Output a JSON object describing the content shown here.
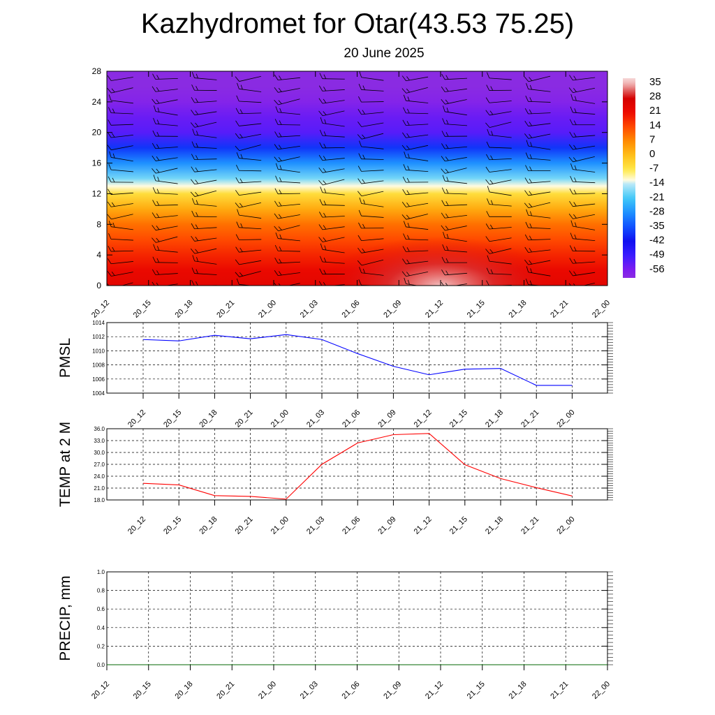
{
  "title": "Kazhydromet for Otar(43.53 75.25)",
  "subtitle": "20 June 2025",
  "colors": {
    "pmsl": "#0000ff",
    "temp": "#ff0000",
    "precip": "#006400"
  },
  "chart_data": [
    {
      "type": "heatmap",
      "name": "upper-air-temperature-wind",
      "xlabel": "",
      "ylabel": "",
      "x_ticks": [
        "20_12",
        "20_15",
        "20_18",
        "20_21",
        "21_00",
        "21_03",
        "21_06",
        "21_09",
        "21_12",
        "21_15",
        "21_18",
        "21_21",
        "22_00"
      ],
      "y_ticks": [
        0,
        4,
        8,
        12,
        16,
        20,
        24,
        28
      ],
      "ylim": [
        0,
        28
      ],
      "colorbar_labels": [
        35,
        28,
        21,
        14,
        7,
        0,
        -7,
        -14,
        -21,
        -28,
        -35,
        -42,
        -49,
        -56
      ],
      "colorbar_range": [
        -60,
        38
      ],
      "temperature_profile": [
        {
          "y": 0,
          "t": 24
        },
        {
          "y": 2,
          "t": 22
        },
        {
          "y": 4,
          "t": 18
        },
        {
          "y": 6,
          "t": 14
        },
        {
          "y": 8,
          "t": 10
        },
        {
          "y": 10,
          "t": 3
        },
        {
          "y": 12,
          "t": -5
        },
        {
          "y": 13,
          "t": -12
        },
        {
          "y": 14,
          "t": -18
        },
        {
          "y": 16,
          "t": -28
        },
        {
          "y": 18,
          "t": -38
        },
        {
          "y": 20,
          "t": -52
        },
        {
          "y": 22,
          "t": -54
        },
        {
          "y": 24,
          "t": -58
        },
        {
          "y": 26,
          "t": -60
        },
        {
          "y": 28,
          "t": -60
        }
      ],
      "warm_core": {
        "x": "21_12",
        "y": 0,
        "t": 36
      },
      "wind_barbs": true
    },
    {
      "type": "line",
      "ylabel": "PMSL",
      "categories": [
        "20_12",
        "20_15",
        "20_18",
        "20_21",
        "21_00",
        "21_03",
        "21_06",
        "21_09",
        "21_12",
        "21_15",
        "21_18",
        "21_21",
        "22_00"
      ],
      "ylim": [
        1004,
        1014
      ],
      "y_ticks": [
        1004,
        1006,
        1008,
        1010,
        1012,
        1014
      ],
      "series": [
        {
          "values": [
            1011.6,
            1011.4,
            1012.2,
            1011.7,
            1012.3,
            1011.6,
            1009.6,
            1007.8,
            1006.6,
            1007.4,
            1007.5,
            1005.1,
            1005.1
          ]
        }
      ],
      "grid": true
    },
    {
      "type": "line",
      "ylabel": "TEMP at 2 M",
      "categories": [
        "20_12",
        "20_15",
        "20_18",
        "20_21",
        "21_00",
        "21_03",
        "21_06",
        "21_09",
        "21_12",
        "21_15",
        "21_18",
        "21_21",
        "22_00"
      ],
      "ylim": [
        18,
        36
      ],
      "y_ticks": [
        "18.0",
        "21.0",
        "24.0",
        "27.0",
        "30.0",
        "33.0",
        "36.0"
      ],
      "series": [
        {
          "values": [
            22.2,
            21.8,
            19.1,
            18.9,
            18.2,
            27.0,
            32.4,
            34.5,
            34.8,
            26.9,
            23.4,
            21.1,
            19.0
          ]
        }
      ],
      "grid": true
    },
    {
      "type": "line",
      "ylabel": "PRECIP, mm",
      "categories": [
        "20_12",
        "20_15",
        "20_18",
        "20_21",
        "21_00",
        "21_03",
        "21_06",
        "21_09",
        "21_12",
        "21_15",
        "21_18",
        "21_21",
        "22_00"
      ],
      "ylim": [
        0,
        1
      ],
      "y_ticks": [
        "0.0",
        "0.2",
        "0.4",
        "0.6",
        "0.8",
        "1.0"
      ],
      "series": [
        {
          "values": [
            0,
            0,
            0,
            0,
            0,
            0,
            0,
            0,
            0,
            0,
            0,
            0,
            0
          ]
        }
      ],
      "grid": true
    }
  ]
}
